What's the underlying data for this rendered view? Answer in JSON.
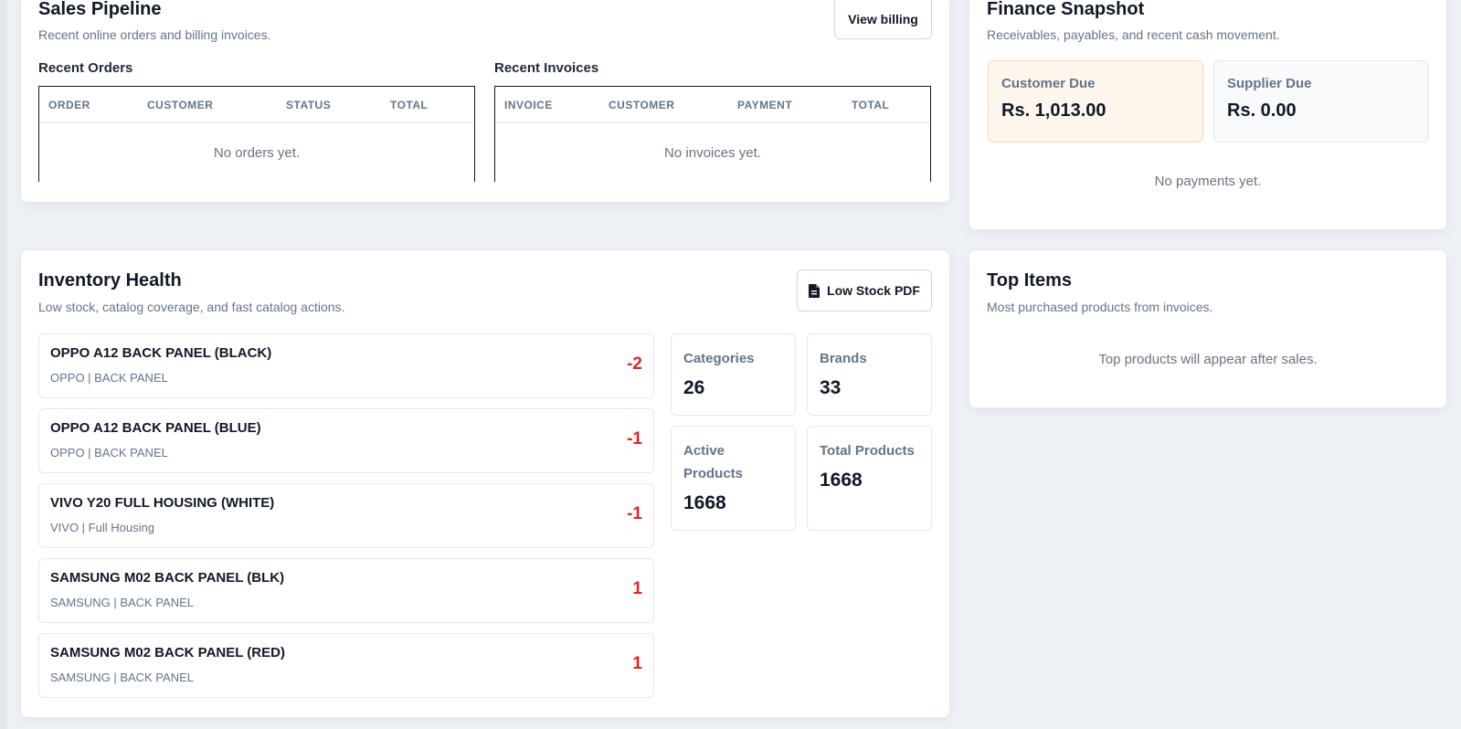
{
  "sales": {
    "title": "Sales Pipeline",
    "subtitle": "Recent online orders and billing invoices.",
    "view_billing": "View billing",
    "orders": {
      "label": "Recent Orders",
      "columns": [
        "ORDER",
        "CUSTOMER",
        "STATUS",
        "TOTAL"
      ],
      "empty": "No orders yet."
    },
    "invoices": {
      "label": "Recent Invoices",
      "columns": [
        "INVOICE",
        "CUSTOMER",
        "PAYMENT",
        "TOTAL"
      ],
      "empty": "No invoices yet."
    }
  },
  "finance": {
    "title": "Finance Snapshot",
    "subtitle": "Receivables, payables, and recent cash movement.",
    "customer_due": {
      "label": "Customer Due",
      "value": "Rs. 1,013.00",
      "bg": "#fff7ed",
      "border": "#fed7aa"
    },
    "supplier_due": {
      "label": "Supplier Due",
      "value": "Rs. 0.00",
      "bg": "#f8fafc",
      "border": "#e5e7eb"
    },
    "empty": "No payments yet."
  },
  "inventory": {
    "title": "Inventory Health",
    "subtitle": "Low stock, catalog coverage, and fast catalog actions.",
    "pdf_button": "Low Stock PDF",
    "pdf_icon": "file-pdf-icon",
    "items": [
      {
        "name": "OPPO A12 BACK PANEL (BLACK)",
        "meta": "OPPO | BACK PANEL",
        "qty": "-2"
      },
      {
        "name": "OPPO A12 BACK PANEL (BLUE)",
        "meta": "OPPO | BACK PANEL",
        "qty": "-1"
      },
      {
        "name": "VIVO Y20 FULL HOUSING (WHITE)",
        "meta": "VIVO | Full Housing",
        "qty": "-1"
      },
      {
        "name": "SAMSUNG M02 BACK PANEL (BLK)",
        "meta": "SAMSUNG | BACK PANEL",
        "qty": "1"
      },
      {
        "name": "SAMSUNG M02 BACK PANEL (RED)",
        "meta": "SAMSUNG | BACK PANEL",
        "qty": "1"
      }
    ],
    "stats": {
      "categories": {
        "label": "Categories",
        "value": "26"
      },
      "brands": {
        "label": "Brands",
        "value": "33"
      },
      "active_products": {
        "label": "Active Products",
        "value": "1668"
      },
      "total_products": {
        "label": "Total Products",
        "value": "1668"
      }
    },
    "alert_color": "#dc2626"
  },
  "top_items": {
    "title": "Top Items",
    "subtitle": "Most purchased products from invoices.",
    "empty": "Top products will appear after sales."
  }
}
